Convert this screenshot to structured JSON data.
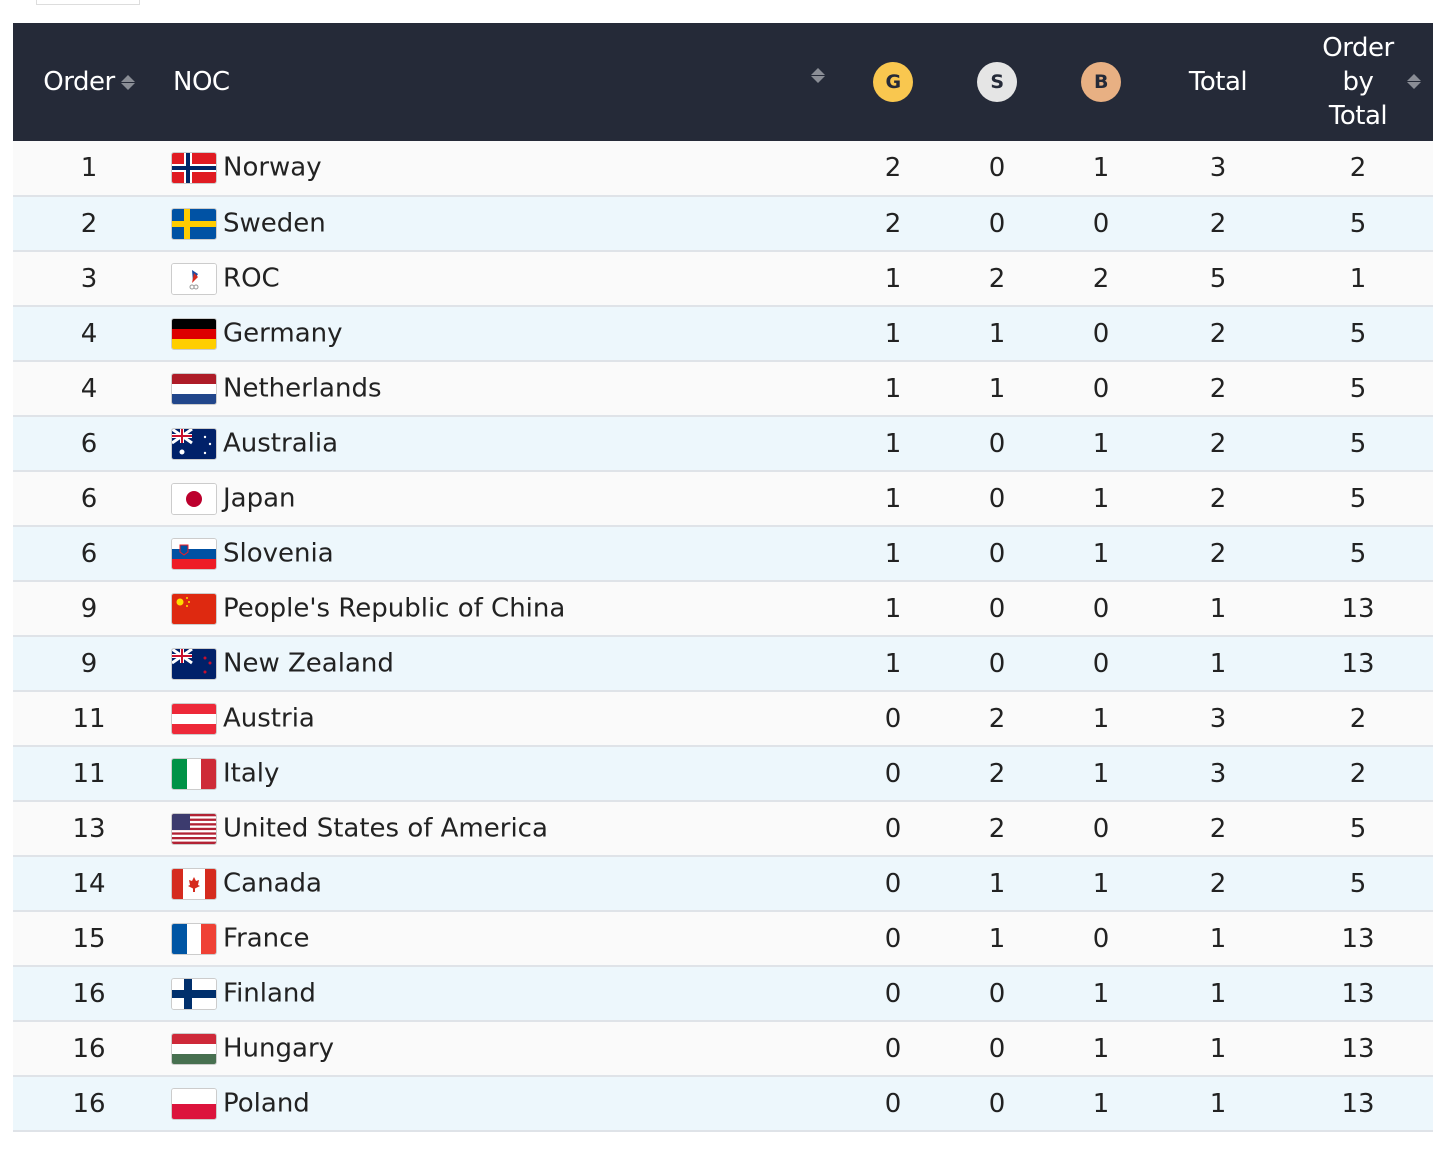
{
  "header": {
    "order": "Order",
    "noc": "NOC",
    "gold": "G",
    "silver": "S",
    "bronze": "B",
    "total": "Total",
    "order_by_total": "Order by Total"
  },
  "colors": {
    "header_bg": "#252a38",
    "gold": "#f9c74f",
    "silver": "#e5e5e5",
    "bronze": "#e8b083"
  },
  "rows": [
    {
      "order": "1",
      "flag": "no",
      "noc": "Norway",
      "g": "2",
      "s": "0",
      "b": "1",
      "total": "3",
      "obt": "2"
    },
    {
      "order": "2",
      "flag": "se",
      "noc": "Sweden",
      "g": "2",
      "s": "0",
      "b": "0",
      "total": "2",
      "obt": "5"
    },
    {
      "order": "3",
      "flag": "roc",
      "noc": "ROC",
      "g": "1",
      "s": "2",
      "b": "2",
      "total": "5",
      "obt": "1"
    },
    {
      "order": "4",
      "flag": "de",
      "noc": "Germany",
      "g": "1",
      "s": "1",
      "b": "0",
      "total": "2",
      "obt": "5"
    },
    {
      "order": "4",
      "flag": "nl",
      "noc": "Netherlands",
      "g": "1",
      "s": "1",
      "b": "0",
      "total": "2",
      "obt": "5"
    },
    {
      "order": "6",
      "flag": "au",
      "noc": "Australia",
      "g": "1",
      "s": "0",
      "b": "1",
      "total": "2",
      "obt": "5"
    },
    {
      "order": "6",
      "flag": "jp",
      "noc": "Japan",
      "g": "1",
      "s": "0",
      "b": "1",
      "total": "2",
      "obt": "5"
    },
    {
      "order": "6",
      "flag": "si",
      "noc": "Slovenia",
      "g": "1",
      "s": "0",
      "b": "1",
      "total": "2",
      "obt": "5"
    },
    {
      "order": "9",
      "flag": "cn",
      "noc": "People's Republic of China",
      "g": "1",
      "s": "0",
      "b": "0",
      "total": "1",
      "obt": "13"
    },
    {
      "order": "9",
      "flag": "nz",
      "noc": "New Zealand",
      "g": "1",
      "s": "0",
      "b": "0",
      "total": "1",
      "obt": "13"
    },
    {
      "order": "11",
      "flag": "at",
      "noc": "Austria",
      "g": "0",
      "s": "2",
      "b": "1",
      "total": "3",
      "obt": "2"
    },
    {
      "order": "11",
      "flag": "it",
      "noc": "Italy",
      "g": "0",
      "s": "2",
      "b": "1",
      "total": "3",
      "obt": "2"
    },
    {
      "order": "13",
      "flag": "us",
      "noc": "United States of America",
      "g": "0",
      "s": "2",
      "b": "0",
      "total": "2",
      "obt": "5"
    },
    {
      "order": "14",
      "flag": "ca",
      "noc": "Canada",
      "g": "0",
      "s": "1",
      "b": "1",
      "total": "2",
      "obt": "5"
    },
    {
      "order": "15",
      "flag": "fr",
      "noc": "France",
      "g": "0",
      "s": "1",
      "b": "0",
      "total": "1",
      "obt": "13"
    },
    {
      "order": "16",
      "flag": "fi",
      "noc": "Finland",
      "g": "0",
      "s": "0",
      "b": "1",
      "total": "1",
      "obt": "13"
    },
    {
      "order": "16",
      "flag": "hu",
      "noc": "Hungary",
      "g": "0",
      "s": "0",
      "b": "1",
      "total": "1",
      "obt": "13"
    },
    {
      "order": "16",
      "flag": "pl",
      "noc": "Poland",
      "g": "0",
      "s": "0",
      "b": "1",
      "total": "1",
      "obt": "13"
    }
  ]
}
